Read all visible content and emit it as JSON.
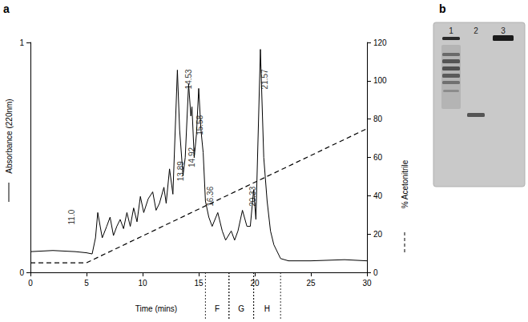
{
  "chart_data": {
    "type": "line",
    "panel_label": "a",
    "xlabel": "Time (mins)",
    "xlim": [
      0,
      30
    ],
    "xticks": [
      0,
      5,
      10,
      15,
      20,
      25,
      30
    ],
    "ylim": [
      0,
      1
    ],
    "yticks": [
      0,
      1
    ],
    "y2lim": [
      0,
      120
    ],
    "y2ticks": [
      0,
      20,
      40,
      60,
      80,
      100,
      120
    ],
    "grid": false,
    "series": [
      {
        "name": "Absorbance (220nm)",
        "color": "#000000",
        "line_style": "solid",
        "x": [
          0,
          2,
          4,
          5,
          5.5,
          5.8,
          6.0,
          6.4,
          6.8,
          7.1,
          7.4,
          7.7,
          8.0,
          8.3,
          8.6,
          8.9,
          9.2,
          9.5,
          9.8,
          10.1,
          10.5,
          10.9,
          11.2,
          11.5,
          11.9,
          12.1,
          12.4,
          12.7,
          13.1,
          13.3,
          13.6,
          13.8,
          14.1,
          14.3,
          14.4,
          14.6,
          14.8,
          15.0,
          15.2,
          15.4,
          15.6,
          15.9,
          16.2,
          16.7,
          17.1,
          17.4,
          17.9,
          18.2,
          18.5,
          18.9,
          19.3,
          19.6,
          19.9,
          20.1,
          20.5,
          20.8,
          21.1,
          21.4,
          21.7,
          22.3,
          23,
          25,
          28,
          30
        ],
        "values": [
          0.09,
          0.095,
          0.09,
          0.085,
          0.08,
          0.15,
          0.26,
          0.15,
          0.2,
          0.24,
          0.16,
          0.2,
          0.23,
          0.19,
          0.26,
          0.2,
          0.28,
          0.22,
          0.33,
          0.26,
          0.32,
          0.35,
          0.27,
          0.3,
          0.37,
          0.3,
          0.45,
          0.34,
          0.88,
          0.62,
          0.42,
          0.5,
          0.82,
          0.68,
          0.72,
          0.5,
          0.6,
          0.8,
          0.62,
          0.52,
          0.31,
          0.24,
          0.2,
          0.26,
          0.18,
          0.14,
          0.18,
          0.14,
          0.18,
          0.27,
          0.2,
          0.2,
          0.36,
          0.23,
          0.97,
          0.5,
          0.31,
          0.18,
          0.12,
          0.06,
          0.05,
          0.05,
          0.055,
          0.05
        ]
      },
      {
        "name": "% Acetonitrile",
        "color": "#000000",
        "line_style": "dashed",
        "axis": "y2",
        "x": [
          0,
          5,
          30
        ],
        "values": [
          5,
          5,
          75
        ]
      }
    ],
    "annotations": [
      {
        "x": 3.7,
        "y": 0.24,
        "text": "11.0"
      },
      {
        "x": 13.4,
        "y": 0.44,
        "text": "13.89"
      },
      {
        "x": 14.1,
        "y": 0.84,
        "text": "14.53"
      },
      {
        "x": 14.4,
        "y": 0.5,
        "text": "14.92"
      },
      {
        "x": 15.1,
        "y": 0.64,
        "text": "15.58"
      },
      {
        "x": 16.0,
        "y": 0.33,
        "text": "16.36"
      },
      {
        "x": 19.8,
        "y": 0.33,
        "text": "20.33"
      },
      {
        "x": 20.9,
        "y": 0.84,
        "text": "21.57"
      }
    ],
    "fractions": [
      {
        "label": "F",
        "start": 15.6,
        "end": 17.7
      },
      {
        "label": "G",
        "start": 17.7,
        "end": 19.9
      },
      {
        "label": "H",
        "start": 19.9,
        "end": 22.3
      }
    ]
  },
  "gel": {
    "panel_label": "b",
    "lanes": [
      "1",
      "2",
      "3"
    ]
  }
}
